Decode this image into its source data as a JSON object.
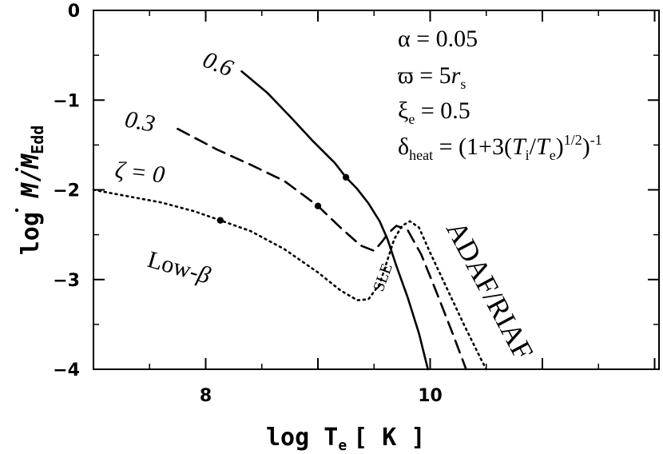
{
  "chart_data": {
    "type": "line",
    "xlabel": "log T",
    "xlabel_sub": "e",
    "xunit": "[ K ]",
    "ylabel_lead": "log ",
    "ylabel_m": "M",
    "ylabel_slash": "/",
    "ylabel_sub": "Edd",
    "xlim": [
      7,
      12.6
    ],
    "ylim": [
      -4,
      0
    ],
    "xticks": [
      8,
      10
    ],
    "yticks": [
      0,
      -1,
      -2,
      -3,
      -4
    ],
    "ytick_labels": [
      "0",
      "−1",
      "−2",
      "−3",
      "−4"
    ],
    "series": [
      {
        "name": "0.6",
        "style": "solid",
        "points": [
          [
            8.32,
            -0.68
          ],
          [
            8.55,
            -0.92
          ],
          [
            8.75,
            -1.18
          ],
          [
            8.95,
            -1.45
          ],
          [
            9.15,
            -1.7
          ],
          [
            9.25,
            -1.86
          ],
          [
            9.35,
            -1.99
          ],
          [
            9.45,
            -2.15
          ],
          [
            9.55,
            -2.35
          ],
          [
            9.62,
            -2.55
          ],
          [
            9.7,
            -2.85
          ],
          [
            9.8,
            -3.2
          ],
          [
            9.9,
            -3.6
          ],
          [
            9.98,
            -4.0
          ]
        ],
        "markers": [
          [
            9.25,
            -1.86
          ]
        ]
      },
      {
        "name": "0.3",
        "style": "dashed",
        "points": [
          [
            7.75,
            -1.32
          ],
          [
            8.1,
            -1.55
          ],
          [
            8.4,
            -1.72
          ],
          [
            8.7,
            -1.9
          ],
          [
            9.0,
            -2.18
          ],
          [
            9.2,
            -2.42
          ],
          [
            9.38,
            -2.62
          ],
          [
            9.5,
            -2.68
          ],
          [
            9.57,
            -2.58
          ],
          [
            9.63,
            -2.48
          ],
          [
            9.7,
            -2.4
          ],
          [
            9.8,
            -2.45
          ],
          [
            9.92,
            -2.72
          ],
          [
            10.05,
            -3.12
          ],
          [
            10.2,
            -3.6
          ],
          [
            10.32,
            -4.0
          ]
        ],
        "markers": [
          [
            9.0,
            -2.18
          ]
        ]
      },
      {
        "name": "ζ = 0",
        "style": "dotted",
        "points": [
          [
            7.0,
            -2.0
          ],
          [
            7.3,
            -2.07
          ],
          [
            7.6,
            -2.14
          ],
          [
            7.9,
            -2.24
          ],
          [
            8.13,
            -2.34
          ],
          [
            8.4,
            -2.46
          ],
          [
            8.7,
            -2.66
          ],
          [
            9.0,
            -2.92
          ],
          [
            9.2,
            -3.12
          ],
          [
            9.35,
            -3.23
          ],
          [
            9.45,
            -3.22
          ],
          [
            9.55,
            -3.05
          ],
          [
            9.62,
            -2.78
          ],
          [
            9.68,
            -2.55
          ],
          [
            9.75,
            -2.4
          ],
          [
            9.82,
            -2.35
          ],
          [
            9.9,
            -2.42
          ],
          [
            10.0,
            -2.7
          ],
          [
            10.15,
            -3.1
          ],
          [
            10.3,
            -3.5
          ],
          [
            10.45,
            -3.88
          ],
          [
            10.5,
            -4.0
          ]
        ],
        "markers": [
          [
            8.13,
            -2.34
          ]
        ]
      }
    ],
    "curve_labels": [
      "0.6",
      "0.3",
      "ζ = 0"
    ],
    "region_labels": {
      "low_beta_prefix": "Low-",
      "low_beta_sym": "β",
      "sle": "SLE",
      "adaf": "ADAF/RIAF"
    },
    "params": {
      "alpha": {
        "sym": "α",
        "rest": " = 0.05"
      },
      "varpi": {
        "sym": "ϖ",
        "eq": " = 5",
        "r": "r",
        "sub": "s"
      },
      "xi": {
        "sym": "ξ",
        "sub": "e",
        "rest": " = 0.5"
      },
      "delta": {
        "sym": "δ",
        "sub": "heat",
        "p1": " = (1+3(",
        "Ti": "T",
        "Ti_sub": "i",
        "slash": "/",
        "Te": "T",
        "Te_sub": "e",
        "p2": ")",
        "sup1": "1/2",
        "p3": ")",
        "sup2": "-1"
      }
    }
  }
}
